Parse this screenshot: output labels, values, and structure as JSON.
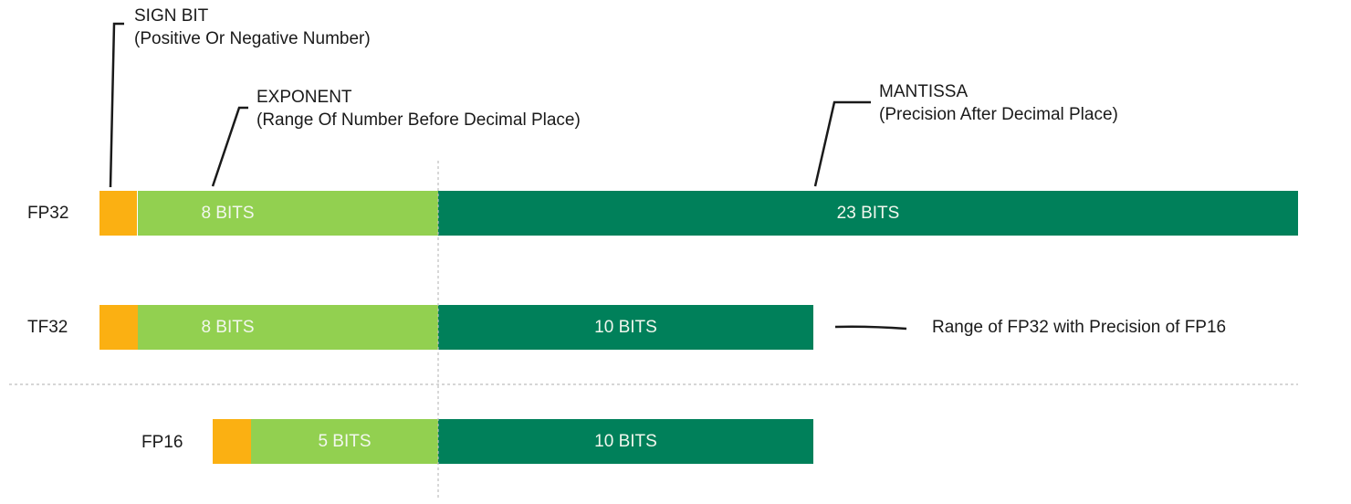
{
  "colors": {
    "sign": "#FBB012",
    "exponent": "#92D050",
    "mantissa": "#00805A",
    "separator": "#bdbdbd",
    "leader": "#1a1a1a"
  },
  "annotations": {
    "sign": {
      "title": "SIGN BIT",
      "subtitle": "(Positive Or Negative Number)"
    },
    "exponent": {
      "title": "EXPONENT",
      "subtitle": "(Range Of Number Before Decimal Place)"
    },
    "mantissa": {
      "title": "MANTISSA",
      "subtitle": "(Precision After Decimal Place)"
    }
  },
  "rows": [
    {
      "name": "FP32",
      "exponent_label": "8 BITS",
      "mantissa_label": "23 BITS",
      "exponent_bits": 8,
      "mantissa_bits": 23
    },
    {
      "name": "TF32",
      "exponent_label": "8 BITS",
      "mantissa_label": "10 BITS",
      "exponent_bits": 8,
      "mantissa_bits": 10
    },
    {
      "name": "FP16",
      "exponent_label": "5 BITS",
      "mantissa_label": "10 BITS",
      "exponent_bits": 5,
      "mantissa_bits": 10
    }
  ],
  "tf32_note": "Range of FP32 with Precision of FP16"
}
